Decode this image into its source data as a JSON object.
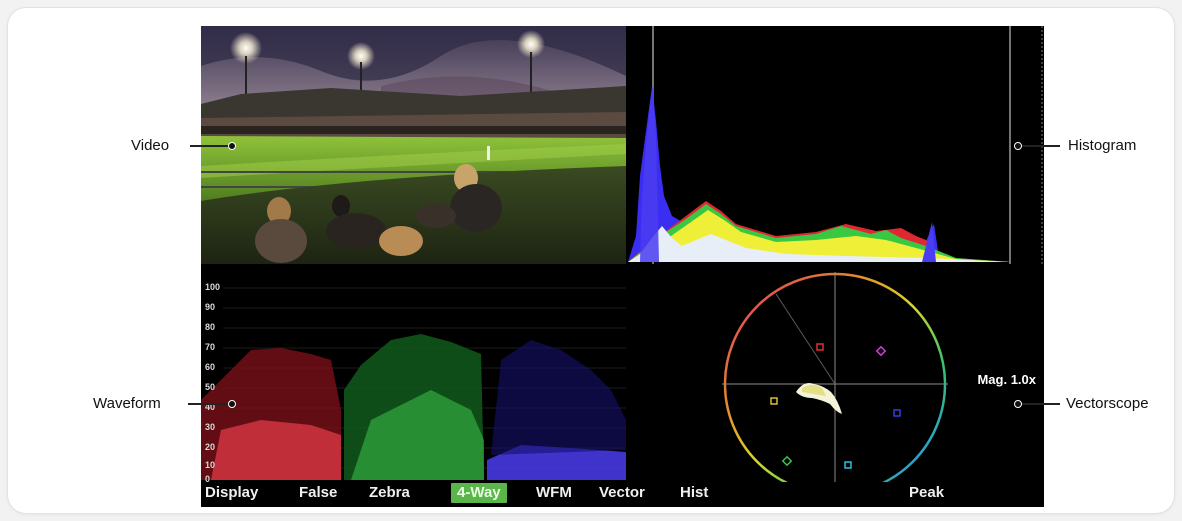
{
  "callouts": {
    "video": "Video",
    "histogram": "Histogram",
    "waveform": "Waveform",
    "vectorscope": "Vectorscope"
  },
  "waveform": {
    "scale": [
      "100",
      "90",
      "80",
      "70",
      "60",
      "50",
      "40",
      "30",
      "20",
      "10",
      "0"
    ]
  },
  "vectorscope": {
    "mag_label": "Mag. 1.0x"
  },
  "menu": {
    "display": "Display",
    "false": "False",
    "zebra": "Zebra",
    "four_way": "4-Way",
    "wfm": "WFM",
    "vector": "Vector",
    "hist": "Hist",
    "peak": "Peak"
  },
  "colors": {
    "active_tab": "#5ab54a",
    "red": "#e0323a",
    "green": "#3dc24a",
    "blue": "#4a3cf0"
  }
}
